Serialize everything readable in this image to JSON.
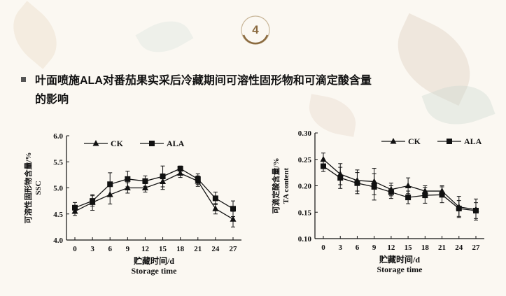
{
  "slide": {
    "number": "4",
    "title_line1": "叶面喷施ALA对番茄果实采后冷藏期间可溶性固形物和可滴定酸含量",
    "title_line2": "的影响"
  },
  "colors": {
    "accent": "#8a6a3f",
    "line": "#111111"
  },
  "chart_data": [
    {
      "type": "line",
      "ylabel_cn": "可溶性固形物含量/%",
      "ylabel_en": "SSC",
      "xlabel_cn": "贮藏时间/d",
      "xlabel_en": "Storage time",
      "x": [
        0,
        3,
        6,
        9,
        12,
        15,
        18,
        21,
        24,
        27
      ],
      "ylim": [
        4.0,
        6.0
      ],
      "yticks": [
        "4.0",
        "4.5",
        "5.0",
        "5.5",
        "6.0"
      ],
      "xticks": [
        "0",
        "3",
        "6",
        "9",
        "12",
        "15",
        "18",
        "21",
        "24",
        "27"
      ],
      "legend_position": "top",
      "series": [
        {
          "name": "CK",
          "marker": "triangle",
          "values": [
            4.55,
            4.72,
            4.87,
            5.0,
            5.0,
            5.12,
            5.28,
            5.13,
            4.6,
            4.4
          ],
          "errors": [
            0.08,
            0.15,
            0.18,
            0.1,
            0.08,
            0.15,
            0.08,
            0.1,
            0.1,
            0.15
          ]
        },
        {
          "name": "ALA",
          "marker": "square",
          "values": [
            4.62,
            4.75,
            5.07,
            5.17,
            5.13,
            5.22,
            5.37,
            5.17,
            4.8,
            4.6
          ],
          "errors": [
            0.1,
            0.1,
            0.22,
            0.15,
            0.1,
            0.2,
            0.05,
            0.1,
            0.12,
            0.15
          ]
        }
      ]
    },
    {
      "type": "line",
      "ylabel_cn": "可滴定酸含量/%",
      "ylabel_en": "TA content",
      "xlabel_cn": "贮藏时间/d",
      "xlabel_en": "Storage time",
      "x": [
        0,
        3,
        6,
        9,
        12,
        15,
        18,
        21,
        24,
        27
      ],
      "ylim": [
        0.1,
        0.3
      ],
      "yticks": [
        "0.10",
        "0.15",
        "0.20",
        "0.25",
        "0.30"
      ],
      "xticks": [
        "0",
        "3",
        "6",
        "9",
        "12",
        "15",
        "18",
        "21",
        "24",
        "27"
      ],
      "legend_position": "top",
      "series": [
        {
          "name": "CK",
          "marker": "triangle",
          "values": [
            0.25,
            0.222,
            0.21,
            0.208,
            0.193,
            0.2,
            0.19,
            0.19,
            0.16,
            0.155
          ],
          "errors": [
            0.012,
            0.02,
            0.02,
            0.025,
            0.012,
            0.015,
            0.01,
            0.01,
            0.02,
            0.02
          ]
        },
        {
          "name": "ALA",
          "marker": "square",
          "values": [
            0.237,
            0.215,
            0.205,
            0.198,
            0.188,
            0.178,
            0.182,
            0.183,
            0.157,
            0.153
          ],
          "errors": [
            0.01,
            0.02,
            0.02,
            0.025,
            0.012,
            0.012,
            0.015,
            0.015,
            0.015,
            0.015
          ]
        }
      ]
    }
  ]
}
